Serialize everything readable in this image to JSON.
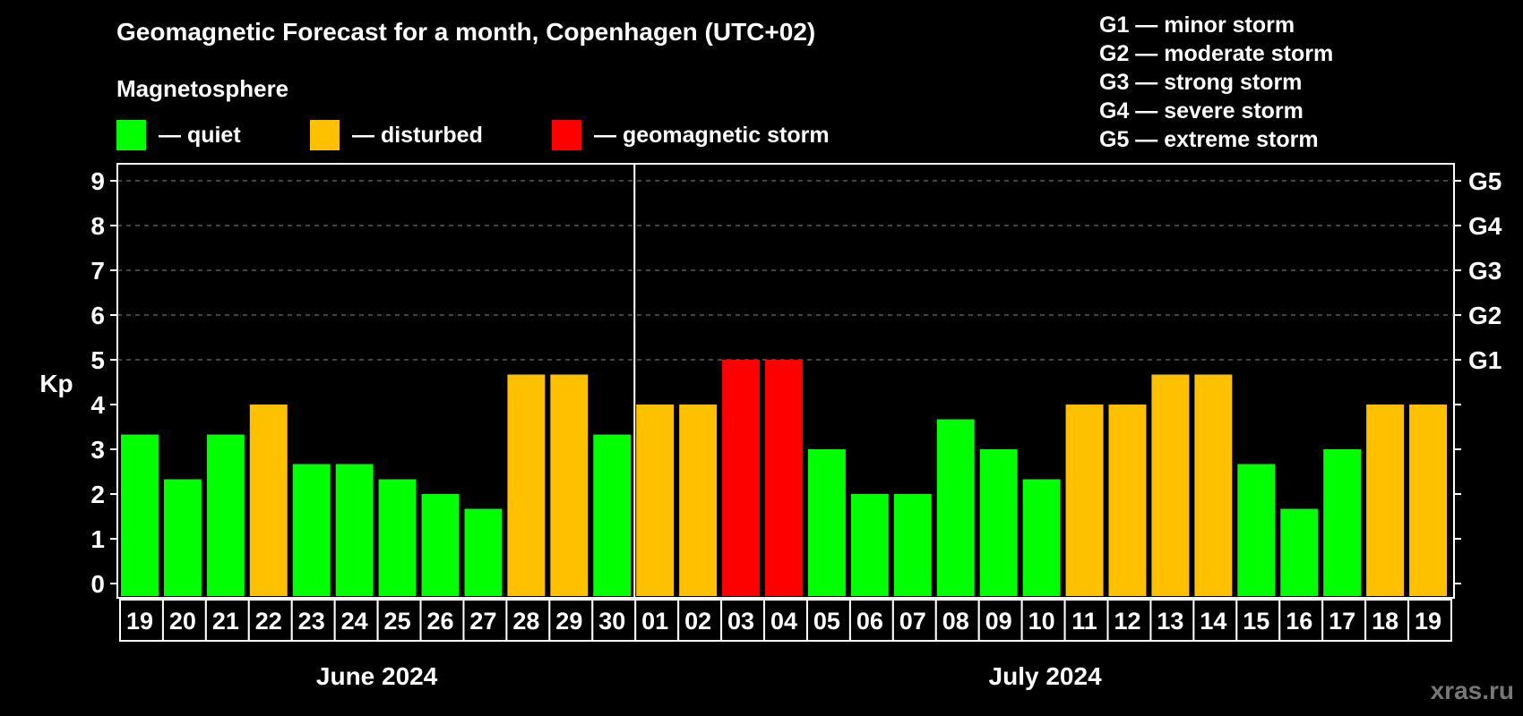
{
  "chart_data": {
    "type": "bar",
    "title": "Geomagnetic Forecast for a month, Copenhagen (UTC+02)",
    "subtitle": "Magnetosphere",
    "ylabel": "Kp",
    "ylim": [
      0,
      9
    ],
    "yticks": [
      "0",
      "1",
      "2",
      "3",
      "4",
      "5",
      "6",
      "7",
      "8",
      "9"
    ],
    "right_ticks": [
      {
        "kp": 5,
        "label": "G1"
      },
      {
        "kp": 6,
        "label": "G2"
      },
      {
        "kp": 7,
        "label": "G3"
      },
      {
        "kp": 8,
        "label": "G4"
      },
      {
        "kp": 9,
        "label": "G5"
      }
    ],
    "grid": "dashed horizontal at Kp 5-9",
    "legend": [
      {
        "key": "quiet",
        "label": "— quiet",
        "color": "#00ff00"
      },
      {
        "key": "disturbed",
        "label": "— disturbed",
        "color": "#ffc000"
      },
      {
        "key": "storm",
        "label": "— geomagnetic storm",
        "color": "#ff0000"
      }
    ],
    "storm_scale": [
      "G1 — minor storm",
      "G2 — moderate storm",
      "G3 — strong storm",
      "G4 — severe storm",
      "G5 — extreme storm"
    ],
    "months": [
      {
        "label": "June 2024",
        "days": [
          "19",
          "20",
          "21",
          "22",
          "23",
          "24",
          "25",
          "26",
          "27",
          "28",
          "29",
          "30"
        ]
      },
      {
        "label": "July 2024",
        "days": [
          "01",
          "02",
          "03",
          "04",
          "05",
          "06",
          "07",
          "08",
          "09",
          "10",
          "11",
          "12",
          "13",
          "14",
          "15",
          "16",
          "17",
          "18",
          "19"
        ]
      }
    ],
    "categories": [
      "19",
      "20",
      "21",
      "22",
      "23",
      "24",
      "25",
      "26",
      "27",
      "28",
      "29",
      "30",
      "01",
      "02",
      "03",
      "04",
      "05",
      "06",
      "07",
      "08",
      "09",
      "10",
      "11",
      "12",
      "13",
      "14",
      "15",
      "16",
      "17",
      "18",
      "19"
    ],
    "values": [
      3.33,
      2.33,
      3.33,
      4,
      2.67,
      2.67,
      2.33,
      2,
      1.67,
      4.67,
      4.67,
      3.33,
      4,
      4,
      5,
      5,
      3,
      2,
      2,
      3.67,
      3,
      2.33,
      4,
      4,
      4.67,
      4.67,
      2.67,
      1.67,
      3,
      4,
      4
    ],
    "status": [
      "quiet",
      "quiet",
      "quiet",
      "disturbed",
      "quiet",
      "quiet",
      "quiet",
      "quiet",
      "quiet",
      "disturbed",
      "disturbed",
      "quiet",
      "disturbed",
      "disturbed",
      "storm",
      "storm",
      "quiet",
      "quiet",
      "quiet",
      "quiet",
      "quiet",
      "quiet",
      "disturbed",
      "disturbed",
      "disturbed",
      "disturbed",
      "quiet",
      "quiet",
      "quiet",
      "disturbed",
      "disturbed"
    ]
  },
  "watermark": "xras.ru"
}
